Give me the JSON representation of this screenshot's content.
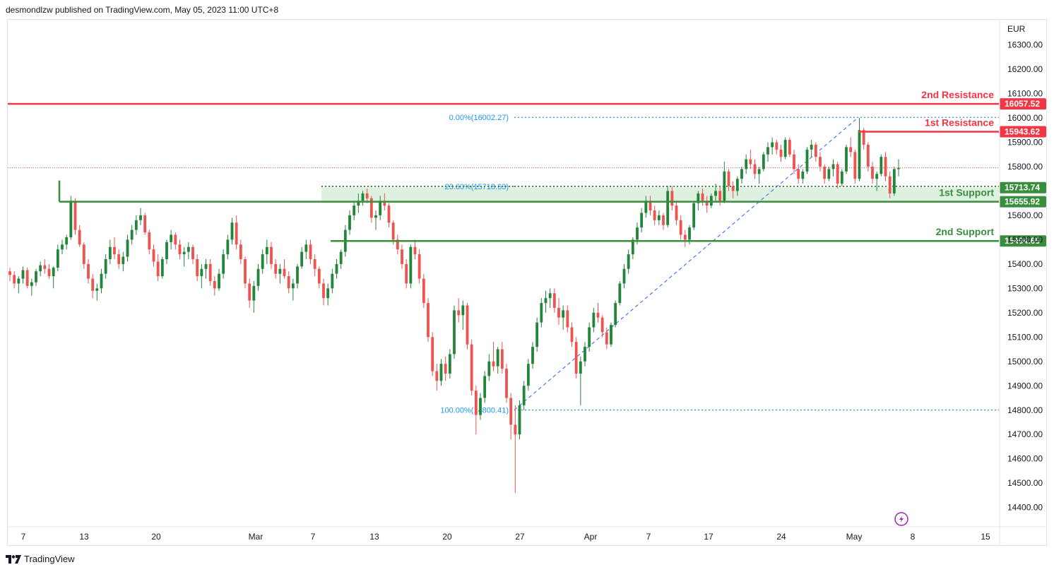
{
  "header": {
    "text": "desmondlzw published on TradingView.com, May 05, 2023 11:00 UTC+8"
  },
  "footer": {
    "brand": "TradingView"
  },
  "colors": {
    "up": "#26a69a",
    "candle_up": "#22863a",
    "candle_down": "#ef5350",
    "resistance": "#f23645",
    "support": "#388e3c",
    "support_zone": "#c8e6c9",
    "fib": "#2962ff",
    "fib_text": "#2196f3"
  },
  "chart_data": {
    "type": "candlestick",
    "currency": "EUR",
    "y_axis": {
      "ticks": [
        16300,
        16200,
        16100,
        16000,
        15900,
        15800,
        15600,
        15500,
        15400,
        15300,
        15200,
        15100,
        15000,
        14900,
        14800,
        14700,
        14600,
        14500,
        14400
      ],
      "tick_labels": [
        "16300.00",
        "16200.00",
        "16100.00",
        "16000.00",
        "15900.00",
        "15800.00",
        "15600.00",
        "15500.00",
        "15400.00",
        "15300.00",
        "15200.00",
        "15100.00",
        "15000.00",
        "14900.00",
        "14800.00",
        "14700.00",
        "14600.00",
        "14500.00",
        "14400.00"
      ],
      "range": [
        14330,
        16400
      ]
    },
    "x_axis": {
      "tick_labels": [
        "7",
        "13",
        "20",
        "Mar",
        "7",
        "13",
        "20",
        "27",
        "Apr",
        "7",
        "17",
        "24",
        "May",
        "8",
        "15"
      ]
    },
    "levels": [
      {
        "name": "2nd Resistance",
        "value": 16057.52,
        "label": "16057.52",
        "kind": "resistance"
      },
      {
        "name": "1st Resistance",
        "value": 15943.62,
        "label": "15943.62",
        "kind": "resistance"
      },
      {
        "name": "1st Support",
        "value": 15713.74,
        "label": "15713.74",
        "kind": "support"
      },
      {
        "name": "",
        "value": 15655.92,
        "label": "15655.92",
        "kind": "support"
      },
      {
        "name": "2nd Support",
        "value": 15494.65,
        "label": "15494.65",
        "kind": "support"
      }
    ],
    "fibonacci": [
      {
        "label": "0.00%(16002.27)",
        "value": 16002.27
      },
      {
        "label": "23.60%(15718.63)",
        "value": 15718.63
      },
      {
        "label": "100.00%(14800.41)",
        "value": 14800.41
      }
    ],
    "last_price": 15795,
    "candles": [
      [
        15370,
        15385,
        15330,
        15355
      ],
      [
        15355,
        15370,
        15300,
        15320
      ],
      [
        15320,
        15350,
        15280,
        15340
      ],
      [
        15340,
        15390,
        15320,
        15375
      ],
      [
        15375,
        15385,
        15300,
        15310
      ],
      [
        15310,
        15340,
        15270,
        15325
      ],
      [
        15325,
        15380,
        15310,
        15370
      ],
      [
        15370,
        15410,
        15350,
        15395
      ],
      [
        15395,
        15420,
        15360,
        15380
      ],
      [
        15380,
        15400,
        15340,
        15350
      ],
      [
        15350,
        15390,
        15300,
        15385
      ],
      [
        15385,
        15480,
        15370,
        15460
      ],
      [
        15460,
        15500,
        15440,
        15480
      ],
      [
        15480,
        15520,
        15460,
        15510
      ],
      [
        15510,
        15680,
        15500,
        15660
      ],
      [
        15660,
        15670,
        15520,
        15540
      ],
      [
        15540,
        15560,
        15470,
        15480
      ],
      [
        15480,
        15490,
        15380,
        15400
      ],
      [
        15400,
        15420,
        15320,
        15340
      ],
      [
        15340,
        15360,
        15260,
        15290
      ],
      [
        15290,
        15320,
        15250,
        15300
      ],
      [
        15300,
        15380,
        15280,
        15360
      ],
      [
        15360,
        15440,
        15340,
        15420
      ],
      [
        15420,
        15500,
        15400,
        15470
      ],
      [
        15470,
        15510,
        15420,
        15440
      ],
      [
        15440,
        15460,
        15380,
        15400
      ],
      [
        15400,
        15450,
        15370,
        15430
      ],
      [
        15430,
        15520,
        15410,
        15500
      ],
      [
        15500,
        15560,
        15480,
        15540
      ],
      [
        15540,
        15600,
        15520,
        15580
      ],
      [
        15580,
        15630,
        15560,
        15600
      ],
      [
        15600,
        15610,
        15520,
        15530
      ],
      [
        15530,
        15540,
        15440,
        15460
      ],
      [
        15460,
        15480,
        15390,
        15410
      ],
      [
        15410,
        15440,
        15330,
        15350
      ],
      [
        15350,
        15430,
        15340,
        15420
      ],
      [
        15420,
        15500,
        15400,
        15490
      ],
      [
        15490,
        15540,
        15460,
        15520
      ],
      [
        15520,
        15530,
        15460,
        15480
      ],
      [
        15480,
        15500,
        15420,
        15440
      ],
      [
        15440,
        15470,
        15390,
        15450
      ],
      [
        15450,
        15490,
        15420,
        15470
      ],
      [
        15470,
        15480,
        15400,
        15420
      ],
      [
        15420,
        15440,
        15330,
        15350
      ],
      [
        15350,
        15400,
        15300,
        15380
      ],
      [
        15380,
        15420,
        15340,
        15400
      ],
      [
        15400,
        15420,
        15310,
        15330
      ],
      [
        15330,
        15350,
        15270,
        15300
      ],
      [
        15300,
        15380,
        15290,
        15360
      ],
      [
        15360,
        15460,
        15340,
        15440
      ],
      [
        15440,
        15520,
        15420,
        15500
      ],
      [
        15500,
        15590,
        15480,
        15570
      ],
      [
        15570,
        15600,
        15460,
        15480
      ],
      [
        15480,
        15500,
        15400,
        15420
      ],
      [
        15420,
        15430,
        15300,
        15320
      ],
      [
        15320,
        15340,
        15220,
        15250
      ],
      [
        15250,
        15330,
        15200,
        15310
      ],
      [
        15310,
        15400,
        15290,
        15380
      ],
      [
        15380,
        15460,
        15360,
        15440
      ],
      [
        15440,
        15500,
        15400,
        15470
      ],
      [
        15470,
        15490,
        15380,
        15400
      ],
      [
        15400,
        15420,
        15340,
        15360
      ],
      [
        15360,
        15400,
        15320,
        15380
      ],
      [
        15380,
        15420,
        15340,
        15350
      ],
      [
        15350,
        15370,
        15280,
        15300
      ],
      [
        15300,
        15340,
        15250,
        15320
      ],
      [
        15320,
        15400,
        15300,
        15390
      ],
      [
        15390,
        15470,
        15380,
        15450
      ],
      [
        15450,
        15500,
        15420,
        15480
      ],
      [
        15480,
        15500,
        15400,
        15420
      ],
      [
        15420,
        15440,
        15350,
        15380
      ],
      [
        15380,
        15390,
        15300,
        15320
      ],
      [
        15320,
        15340,
        15230,
        15260
      ],
      [
        15260,
        15320,
        15230,
        15300
      ],
      [
        15300,
        15380,
        15280,
        15360
      ],
      [
        15360,
        15420,
        15340,
        15400
      ],
      [
        15400,
        15460,
        15380,
        15450
      ],
      [
        15450,
        15560,
        15430,
        15540
      ],
      [
        15540,
        15620,
        15520,
        15600
      ],
      [
        15600,
        15660,
        15580,
        15640
      ],
      [
        15640,
        15690,
        15610,
        15660
      ],
      [
        15660,
        15700,
        15640,
        15690
      ],
      [
        15690,
        15710,
        15650,
        15670
      ],
      [
        15670,
        15680,
        15570,
        15590
      ],
      [
        15590,
        15620,
        15540,
        15600
      ],
      [
        15600,
        15680,
        15580,
        15660
      ],
      [
        15660,
        15690,
        15620,
        15640
      ],
      [
        15640,
        15650,
        15550,
        15570
      ],
      [
        15570,
        15580,
        15480,
        15500
      ],
      [
        15500,
        15520,
        15440,
        15460
      ],
      [
        15460,
        15480,
        15380,
        15400
      ],
      [
        15400,
        15420,
        15300,
        15320
      ],
      [
        15320,
        15480,
        15300,
        15470
      ],
      [
        15470,
        15500,
        15420,
        15440
      ],
      [
        15440,
        15460,
        15320,
        15340
      ],
      [
        15340,
        15360,
        15220,
        15240
      ],
      [
        15240,
        15260,
        15080,
        15100
      ],
      [
        15100,
        15120,
        14940,
        14960
      ],
      [
        14960,
        14990,
        14880,
        14920
      ],
      [
        14920,
        15010,
        14900,
        14990
      ],
      [
        14990,
        15020,
        14920,
        14950
      ],
      [
        14950,
        15050,
        14930,
        15030
      ],
      [
        15030,
        15230,
        15010,
        15210
      ],
      [
        15210,
        15260,
        15160,
        15190
      ],
      [
        15190,
        15250,
        15130,
        15230
      ],
      [
        15230,
        15240,
        15050,
        15070
      ],
      [
        15070,
        15090,
        14860,
        14880
      ],
      [
        14880,
        14900,
        14700,
        14780
      ],
      [
        14780,
        14870,
        14760,
        14850
      ],
      [
        14850,
        14960,
        14830,
        14940
      ],
      [
        14940,
        15030,
        14920,
        15000
      ],
      [
        15000,
        15080,
        14960,
        14980
      ],
      [
        14980,
        15060,
        14950,
        15050
      ],
      [
        15050,
        15080,
        14950,
        14970
      ],
      [
        14970,
        14990,
        14830,
        14850
      ],
      [
        14850,
        14870,
        14680,
        14740
      ],
      [
        14740,
        14820,
        14460,
        14700
      ],
      [
        14700,
        14840,
        14680,
        14820
      ],
      [
        14820,
        14920,
        14800,
        14900
      ],
      [
        14900,
        15010,
        14880,
        14990
      ],
      [
        14990,
        15080,
        14970,
        15060
      ],
      [
        15060,
        15180,
        15040,
        15160
      ],
      [
        15160,
        15260,
        15140,
        15240
      ],
      [
        15240,
        15290,
        15200,
        15260
      ],
      [
        15260,
        15300,
        15220,
        15280
      ],
      [
        15280,
        15300,
        15200,
        15220
      ],
      [
        15220,
        15260,
        15150,
        15180
      ],
      [
        15180,
        15230,
        15130,
        15210
      ],
      [
        15210,
        15230,
        15120,
        15140
      ],
      [
        15140,
        15160,
        15060,
        15080
      ],
      [
        15080,
        15100,
        14930,
        14950
      ],
      [
        14950,
        15020,
        14820,
        15000
      ],
      [
        15000,
        15080,
        14980,
        15060
      ],
      [
        15060,
        15160,
        15040,
        15140
      ],
      [
        15140,
        15220,
        15120,
        15200
      ],
      [
        15200,
        15240,
        15160,
        15180
      ],
      [
        15180,
        15190,
        15100,
        15120
      ],
      [
        15120,
        15140,
        15050,
        15070
      ],
      [
        15070,
        15160,
        15060,
        15150
      ],
      [
        15150,
        15250,
        15140,
        15240
      ],
      [
        15240,
        15330,
        15230,
        15320
      ],
      [
        15320,
        15400,
        15300,
        15380
      ],
      [
        15380,
        15460,
        15360,
        15440
      ],
      [
        15440,
        15510,
        15420,
        15500
      ],
      [
        15500,
        15570,
        15480,
        15550
      ],
      [
        15550,
        15630,
        15530,
        15610
      ],
      [
        15610,
        15680,
        15590,
        15660
      ],
      [
        15660,
        15680,
        15600,
        15620
      ],
      [
        15620,
        15640,
        15560,
        15580
      ],
      [
        15580,
        15620,
        15560,
        15600
      ],
      [
        15600,
        15610,
        15540,
        15560
      ],
      [
        15560,
        15720,
        15550,
        15700
      ],
      [
        15700,
        15720,
        15620,
        15640
      ],
      [
        15640,
        15660,
        15560,
        15580
      ],
      [
        15580,
        15600,
        15500,
        15520
      ],
      [
        15520,
        15540,
        15470,
        15500
      ],
      [
        15500,
        15560,
        15480,
        15550
      ],
      [
        15550,
        15660,
        15540,
        15650
      ],
      [
        15650,
        15700,
        15620,
        15690
      ],
      [
        15690,
        15710,
        15640,
        15660
      ],
      [
        15660,
        15680,
        15610,
        15640
      ],
      [
        15640,
        15690,
        15630,
        15680
      ],
      [
        15680,
        15730,
        15660,
        15700
      ],
      [
        15700,
        15720,
        15640,
        15660
      ],
      [
        15660,
        15820,
        15650,
        15780
      ],
      [
        15780,
        15790,
        15700,
        15720
      ],
      [
        15720,
        15740,
        15670,
        15700
      ],
      [
        15700,
        15760,
        15680,
        15750
      ],
      [
        15750,
        15800,
        15730,
        15790
      ],
      [
        15790,
        15850,
        15770,
        15830
      ],
      [
        15830,
        15870,
        15790,
        15810
      ],
      [
        15810,
        15830,
        15750,
        15770
      ],
      [
        15770,
        15800,
        15730,
        15790
      ],
      [
        15790,
        15860,
        15780,
        15850
      ],
      [
        15850,
        15900,
        15820,
        15880
      ],
      [
        15880,
        15920,
        15850,
        15900
      ],
      [
        15900,
        15910,
        15850,
        15870
      ],
      [
        15870,
        15890,
        15820,
        15840
      ],
      [
        15840,
        15920,
        15830,
        15910
      ],
      [
        15910,
        15920,
        15840,
        15850
      ],
      [
        15850,
        15870,
        15770,
        15790
      ],
      [
        15790,
        15810,
        15730,
        15750
      ],
      [
        15750,
        15790,
        15730,
        15780
      ],
      [
        15780,
        15880,
        15770,
        15870
      ],
      [
        15870,
        15910,
        15840,
        15890
      ],
      [
        15890,
        15900,
        15820,
        15840
      ],
      [
        15840,
        15860,
        15780,
        15800
      ],
      [
        15800,
        15810,
        15730,
        15750
      ],
      [
        15750,
        15800,
        15740,
        15790
      ],
      [
        15790,
        15830,
        15760,
        15810
      ],
      [
        15810,
        15820,
        15710,
        15730
      ],
      [
        15730,
        15790,
        15720,
        15780
      ],
      [
        15780,
        15890,
        15770,
        15880
      ],
      [
        15880,
        15920,
        15840,
        15860
      ],
      [
        15860,
        15870,
        15730,
        15750
      ],
      [
        15750,
        16000,
        15740,
        15950
      ],
      [
        15950,
        15960,
        15870,
        15890
      ],
      [
        15890,
        15900,
        15780,
        15800
      ],
      [
        15800,
        15820,
        15730,
        15750
      ],
      [
        15750,
        15780,
        15700,
        15770
      ],
      [
        15770,
        15850,
        15760,
        15840
      ],
      [
        15840,
        15860,
        15740,
        15760
      ],
      [
        15760,
        15780,
        15670,
        15690
      ],
      [
        15690,
        15800,
        15680,
        15790
      ],
      [
        15790,
        15830,
        15760,
        15795
      ]
    ]
  }
}
